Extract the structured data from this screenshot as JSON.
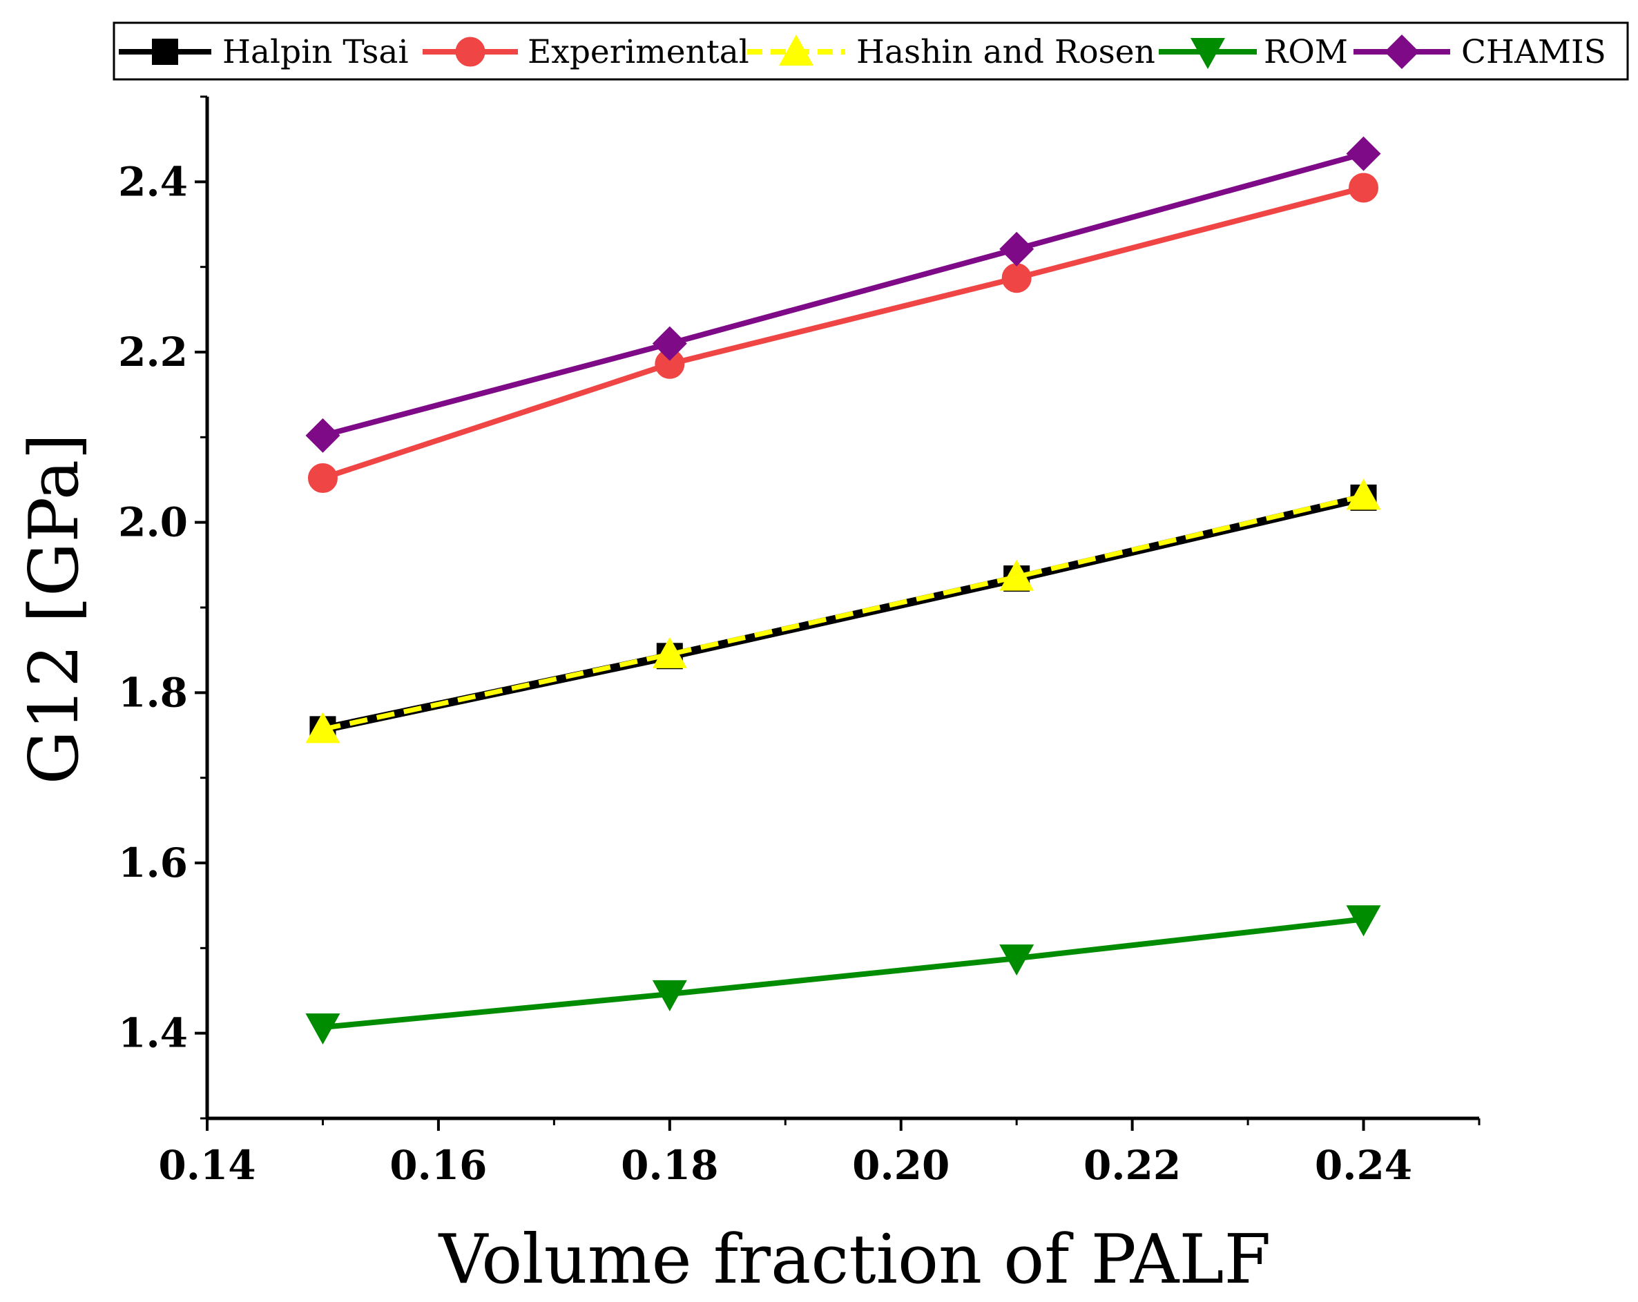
{
  "chart_data": {
    "type": "line",
    "x": [
      0.15,
      0.18,
      0.21,
      0.24
    ],
    "xlabel": "Volume fraction of PALF",
    "ylabel": "G12  [GPa]",
    "xlim": [
      0.14,
      0.25
    ],
    "ylim": [
      1.3,
      2.5
    ],
    "xticks": [
      {
        "value": 0.14,
        "label": "0.14"
      },
      {
        "value": 0.16,
        "label": "0.16"
      },
      {
        "value": 0.18,
        "label": "0.18"
      },
      {
        "value": 0.2,
        "label": "0.20"
      },
      {
        "value": 0.22,
        "label": "0.22"
      },
      {
        "value": 0.24,
        "label": "0.24"
      }
    ],
    "yticks": [
      {
        "value": 1.4,
        "label": "1.4"
      },
      {
        "value": 1.6,
        "label": "1.6"
      },
      {
        "value": 1.8,
        "label": "1.8"
      },
      {
        "value": 2.0,
        "label": "2.0"
      },
      {
        "value": 2.2,
        "label": "2.2"
      },
      {
        "value": 2.4,
        "label": "2.4"
      }
    ],
    "grid": false,
    "legend_position": "top",
    "series": [
      {
        "name": "Halpin Tsai",
        "values": [
          1.757,
          1.843,
          1.934,
          2.029
        ],
        "color": "#000000",
        "marker": "square",
        "dash": false
      },
      {
        "name": "Experimental",
        "values": [
          2.052,
          2.186,
          2.287,
          2.393
        ],
        "color": "#f04545",
        "marker": "circle",
        "dash": false
      },
      {
        "name": "Hashin and Rosen",
        "values": [
          1.757,
          1.845,
          1.936,
          2.031
        ],
        "color": "#ffff00",
        "marker": "triangle-up",
        "dash": true
      },
      {
        "name": "ROM",
        "values": [
          1.407,
          1.446,
          1.488,
          1.534
        ],
        "color": "#008c00",
        "marker": "triangle-down",
        "dash": false
      },
      {
        "name": "CHAMIS",
        "values": [
          2.102,
          2.21,
          2.321,
          2.433
        ],
        "color": "#7f0a87",
        "marker": "diamond",
        "dash": false
      }
    ]
  }
}
